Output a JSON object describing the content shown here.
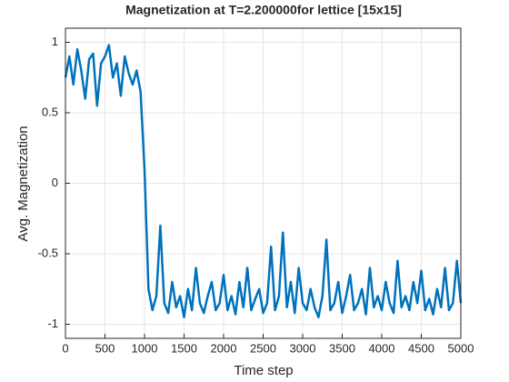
{
  "chart_data": {
    "type": "line",
    "title": "Magnetization at T=2.200000for lettice [15x15]",
    "xlabel": "Time step",
    "ylabel": "Avg. Magnetization",
    "x": [
      0,
      50,
      100,
      150,
      200,
      250,
      300,
      350,
      400,
      450,
      500,
      550,
      600,
      650,
      700,
      750,
      800,
      850,
      900,
      950,
      1000,
      1050,
      1100,
      1150,
      1200,
      1250,
      1300,
      1350,
      1400,
      1450,
      1500,
      1550,
      1600,
      1650,
      1700,
      1750,
      1800,
      1850,
      1900,
      1950,
      2000,
      2050,
      2100,
      2150,
      2200,
      2250,
      2300,
      2350,
      2400,
      2450,
      2500,
      2550,
      2600,
      2650,
      2700,
      2750,
      2800,
      2850,
      2900,
      2950,
      3000,
      3050,
      3100,
      3150,
      3200,
      3250,
      3300,
      3350,
      3400,
      3450,
      3500,
      3550,
      3600,
      3650,
      3700,
      3750,
      3800,
      3850,
      3900,
      3950,
      4000,
      4050,
      4100,
      4150,
      4200,
      4250,
      4300,
      4350,
      4400,
      4450,
      4500,
      4550,
      4600,
      4650,
      4700,
      4750,
      4800,
      4850,
      4900,
      4950,
      5000
    ],
    "series": [
      {
        "name": "Avg. Magnetization",
        "color": "#0072BD",
        "values": [
          0.75,
          0.9,
          0.7,
          0.95,
          0.8,
          0.6,
          0.88,
          0.92,
          0.55,
          0.85,
          0.9,
          0.98,
          0.75,
          0.85,
          0.62,
          0.9,
          0.78,
          0.7,
          0.8,
          0.65,
          0.1,
          -0.75,
          -0.9,
          -0.8,
          -0.3,
          -0.85,
          -0.92,
          -0.7,
          -0.88,
          -0.8,
          -0.95,
          -0.75,
          -0.9,
          -0.6,
          -0.85,
          -0.92,
          -0.8,
          -0.7,
          -0.9,
          -0.85,
          -0.65,
          -0.9,
          -0.8,
          -0.93,
          -0.7,
          -0.88,
          -0.6,
          -0.9,
          -0.82,
          -0.75,
          -0.92,
          -0.85,
          -0.45,
          -0.9,
          -0.8,
          -0.35,
          -0.88,
          -0.7,
          -0.92,
          -0.6,
          -0.85,
          -0.9,
          -0.75,
          -0.88,
          -0.95,
          -0.8,
          -0.4,
          -0.9,
          -0.85,
          -0.7,
          -0.92,
          -0.8,
          -0.65,
          -0.9,
          -0.85,
          -0.75,
          -0.93,
          -0.6,
          -0.88,
          -0.8,
          -0.9,
          -0.7,
          -0.85,
          -0.92,
          -0.55,
          -0.88,
          -0.8,
          -0.9,
          -0.7,
          -0.85,
          -0.62,
          -0.9,
          -0.82,
          -0.93,
          -0.75,
          -0.88,
          -0.6,
          -0.9,
          -0.85,
          -0.55,
          -0.85
        ]
      }
    ],
    "xlim": [
      0,
      5000
    ],
    "xticks": [
      0,
      500,
      1000,
      1500,
      2000,
      2500,
      3000,
      3500,
      4000,
      4500,
      5000
    ],
    "ylim": [
      -1.1,
      1.1
    ],
    "yticks": [
      -1,
      -0.5,
      0,
      0.5,
      1
    ],
    "grid": true
  }
}
